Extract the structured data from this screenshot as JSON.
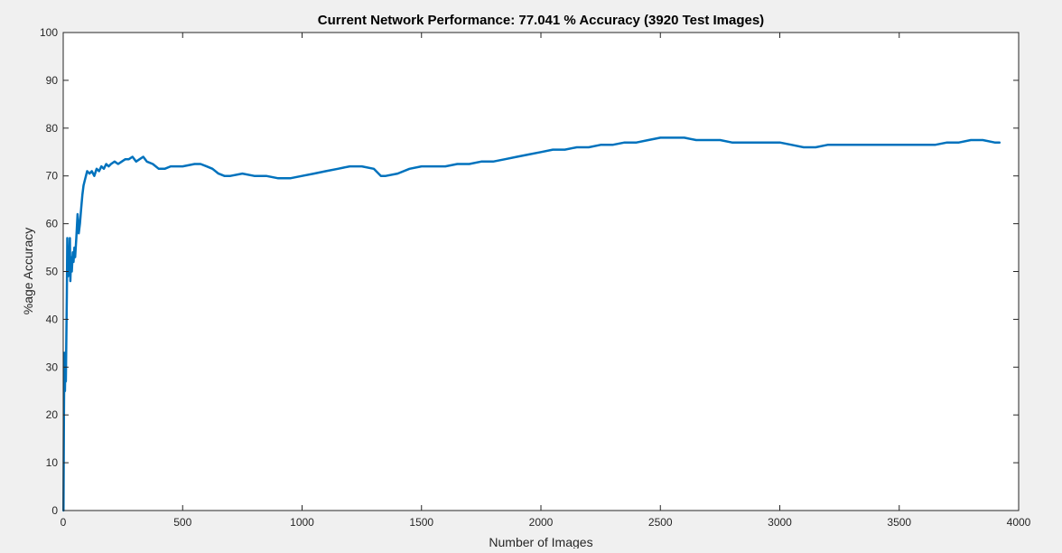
{
  "chart_data": {
    "type": "line",
    "title": "Current Network Performance: 77.041 % Accuracy (3920 Test Images)",
    "xlabel": "Number of Images",
    "ylabel": "%age Accuracy",
    "xlim": [
      0,
      4000
    ],
    "ylim": [
      0,
      100
    ],
    "xticks": [
      "0",
      "500",
      "1000",
      "1500",
      "2000",
      "2500",
      "3000",
      "3500",
      "4000"
    ],
    "yticks": [
      "0",
      "10",
      "20",
      "30",
      "40",
      "50",
      "60",
      "70",
      "80",
      "90",
      "100"
    ],
    "grid": false,
    "legend": "none",
    "line_color": "#0072bd",
    "background_color": "#ffffff",
    "figure_color": "#f0f0f0",
    "series": [
      {
        "x": [
          1,
          3,
          5,
          7,
          9,
          11,
          13,
          15,
          17,
          20,
          22,
          25,
          28,
          30,
          33,
          36,
          40,
          43,
          47,
          50,
          55,
          60,
          65,
          70,
          75,
          80,
          85,
          90,
          100,
          110,
          120,
          130,
          140,
          150,
          160,
          170,
          180,
          190,
          200,
          215,
          230,
          245,
          260,
          275,
          290,
          305,
          320,
          335,
          350,
          375,
          400,
          425,
          450,
          500,
          550,
          575,
          600,
          625,
          650,
          675,
          700,
          750,
          800,
          850,
          900,
          950,
          1000,
          1050,
          1100,
          1150,
          1200,
          1250,
          1300,
          1330,
          1350,
          1400,
          1450,
          1500,
          1550,
          1600,
          1650,
          1700,
          1750,
          1800,
          1850,
          1900,
          1950,
          2000,
          2050,
          2100,
          2150,
          2200,
          2250,
          2300,
          2350,
          2400,
          2450,
          2500,
          2550,
          2600,
          2650,
          2700,
          2750,
          2800,
          2850,
          2900,
          2950,
          3000,
          3050,
          3100,
          3150,
          3200,
          3250,
          3300,
          3350,
          3400,
          3450,
          3500,
          3550,
          3600,
          3650,
          3700,
          3750,
          3800,
          3850,
          3900,
          3920
        ],
        "y": [
          0,
          20,
          33,
          25,
          32,
          27,
          35,
          45,
          57,
          49,
          55,
          51,
          57,
          48,
          53,
          50,
          54,
          52,
          55,
          53,
          57,
          62,
          58,
          60,
          63,
          66,
          68,
          69,
          71,
          70.5,
          71,
          70,
          71.5,
          71,
          72,
          71.5,
          72.5,
          72,
          72.5,
          73,
          72.5,
          73,
          73.5,
          73.5,
          74,
          73,
          73.5,
          74,
          73,
          72.5,
          71.5,
          71.5,
          72,
          72,
          72.5,
          72.5,
          72,
          71.5,
          70.5,
          70,
          70,
          70.5,
          70,
          70,
          69.5,
          69.5,
          70,
          70.5,
          71,
          71.5,
          72,
          72,
          71.5,
          70,
          70,
          70.5,
          71.5,
          72,
          72,
          72,
          72.5,
          72.5,
          73,
          73,
          73.5,
          74,
          74.5,
          75,
          75.5,
          75.5,
          76,
          76,
          76.5,
          76.5,
          77,
          77,
          77.5,
          78,
          78,
          78,
          77.5,
          77.5,
          77.5,
          77,
          77,
          77,
          77,
          77,
          76.5,
          76,
          76,
          76.5,
          76.5,
          76.5,
          76.5,
          76.5,
          76.5,
          76.5,
          76.5,
          76.5,
          76.5,
          77,
          77,
          77.5,
          77.5,
          77,
          77
        ]
      }
    ]
  }
}
